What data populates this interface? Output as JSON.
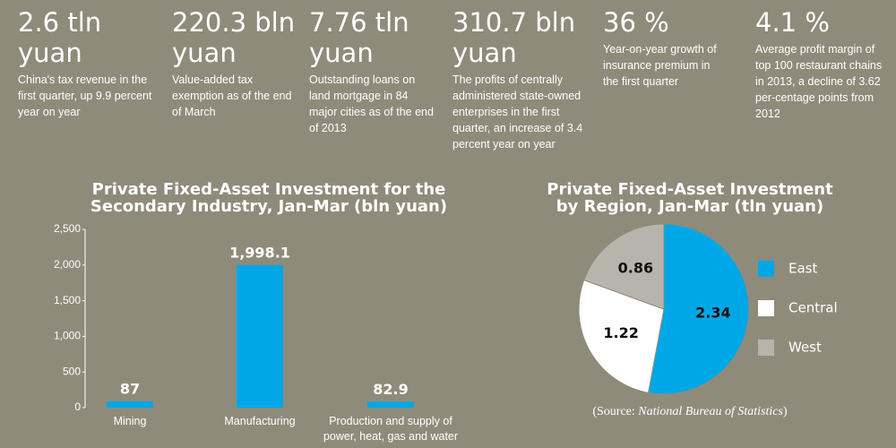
{
  "stats": [
    {
      "value": "2.6 tln yuan",
      "text": "China's tax revenue in the first quarter, up 9.9 percent year on year"
    },
    {
      "value": "220.3 bln yuan",
      "text": "Value-added tax exemption as of the end of March"
    },
    {
      "value": "7.76 tln yuan",
      "text": "Outstanding loans on land mortgage in 84 major cities as of the end of 2013"
    },
    {
      "value": "310.7 bln yuan",
      "text": "The profits of centrally administered state-owned enterprises in the first quarter, an increase of 3.4 percent year on year"
    },
    {
      "value": "36 %",
      "text": "Year-on-year growth of insurance premium in the first quarter"
    },
    {
      "value": "4.1 %",
      "text": "Average profit margin of top 100 restaurant chains in 2013, a decline of 3.62 per-centage points from 2012"
    }
  ],
  "chart_data": [
    {
      "type": "bar",
      "title": "Private Fixed-Asset Investment for the Secondary Industry, Jan-Mar (bln yuan)",
      "categories": [
        "Mining",
        "Manufacturing",
        "Production and supply of power, heat, gas and water"
      ],
      "values": [
        87,
        1998.1,
        82.9
      ],
      "value_labels": [
        "87",
        "1,998.1",
        "82.9"
      ],
      "color": "#00a7e7",
      "ylim": [
        0,
        2500
      ],
      "yticks": [
        0,
        500,
        {
          "value": 1000,
          "label": "1,000"
        },
        {
          "value": 1500,
          "label": "1,500"
        },
        {
          "value": 2000,
          "label": "2,000"
        },
        {
          "value": 2500,
          "label": "2,500"
        }
      ]
    },
    {
      "type": "pie",
      "title": "Private Fixed-Asset Investment by Region, Jan-Mar (tln yuan)",
      "categories": [
        "East",
        "Central",
        "West"
      ],
      "values": [
        2.34,
        1.22,
        0.86
      ],
      "colors": [
        "#00a7e7",
        "#ffffff",
        "#b7b4ad"
      ]
    }
  ],
  "source": [
    "(Source: ",
    "National Bureau of Statistics",
    ")"
  ]
}
